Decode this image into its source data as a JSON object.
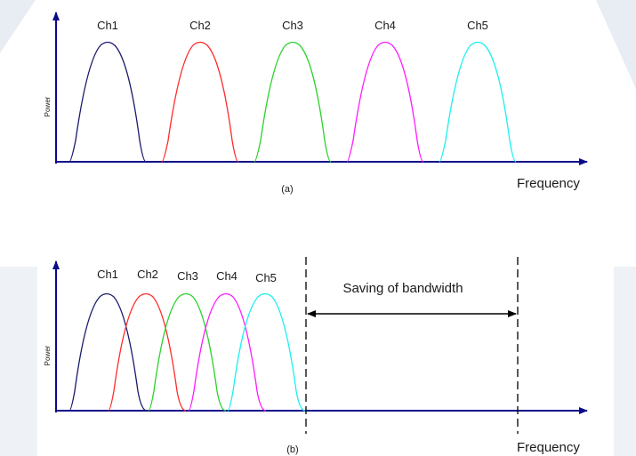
{
  "background": {
    "decor_color": "#e8edf3"
  },
  "panel_a": {
    "caption": "(a)",
    "y_label": "Power",
    "x_label": "Frequency",
    "channels": [
      {
        "label": "Ch1",
        "color": "#1a1a6e"
      },
      {
        "label": "Ch2",
        "color": "#ff2a2a"
      },
      {
        "label": "Ch3",
        "color": "#2ad12a"
      },
      {
        "label": "Ch4",
        "color": "#ff1aff"
      },
      {
        "label": "Ch5",
        "color": "#1af0f0"
      }
    ]
  },
  "panel_b": {
    "caption": "(b)",
    "y_label": "Power",
    "x_label": "Frequency",
    "annotation": "Saving of bandwidth",
    "channels": [
      {
        "label": "Ch1",
        "color": "#1a1a6e"
      },
      {
        "label": "Ch2",
        "color": "#ff2a2a"
      },
      {
        "label": "Ch3",
        "color": "#2ad12a"
      },
      {
        "label": "Ch4",
        "color": "#ff1aff"
      },
      {
        "label": "Ch5",
        "color": "#1af0f0"
      }
    ]
  },
  "colors": {
    "axis": "#0a0a8a",
    "text": "#1a1a1a",
    "dashed": "#000000"
  }
}
